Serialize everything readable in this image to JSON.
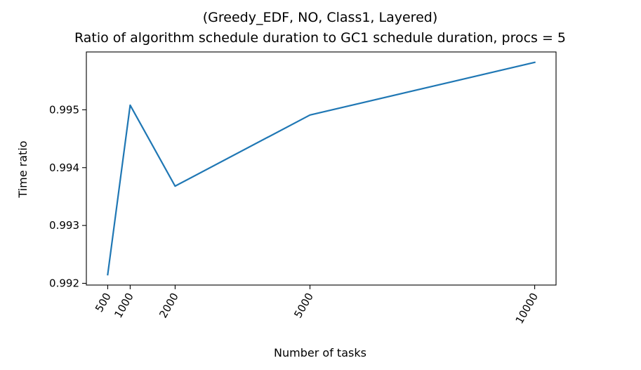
{
  "chart_data": {
    "type": "line",
    "title_line1": "(Greedy_EDF, NO, Class1, Layered)",
    "title_line2": "Ratio of algorithm schedule duration to GC1 schedule duration, procs = 5",
    "xlabel": "Number of tasks",
    "ylabel": "Time ratio",
    "x": [
      500,
      1000,
      2000,
      5000,
      10000
    ],
    "series": [
      {
        "values": [
          0.99215,
          0.99508,
          0.99368,
          0.99491,
          0.99582
        ],
        "color": "#1f77b4"
      }
    ],
    "xticks": [
      500,
      1000,
      2000,
      5000,
      10000
    ],
    "xtick_labels": [
      "500",
      "1000",
      "2000",
      "5000",
      "10000"
    ],
    "yticks": [
      0.992,
      0.993,
      0.994,
      0.995
    ],
    "ytick_labels": [
      "0.992",
      "0.993",
      "0.994",
      "0.995"
    ],
    "xlim": [
      25,
      10475
    ],
    "ylim": [
      0.99197,
      0.996
    ],
    "grid": false,
    "legend": "none"
  }
}
